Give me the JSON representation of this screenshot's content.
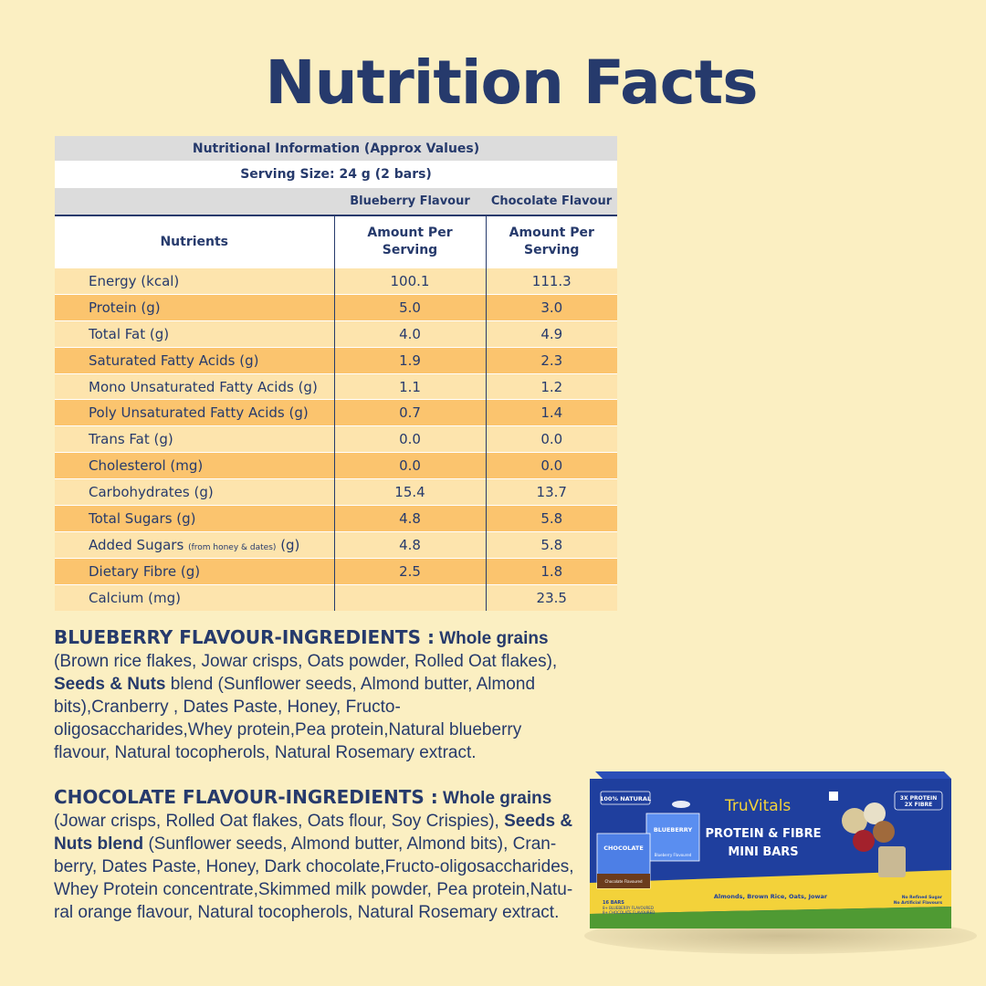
{
  "page_title": "Nutrition Facts",
  "table": {
    "header_title": "Nutritional Information (Approx Values)",
    "serving_size": "Serving Size: 24 g (2 bars)",
    "flavour_1": "Blueberry Flavour",
    "flavour_2": "Chocolate Flavour",
    "col_nutrients": "Nutrients",
    "col_amount_1_line1": "Amount Per",
    "col_amount_1_line2": "Serving",
    "col_amount_2_line1": "Amount Per",
    "col_amount_2_line2": "Serving",
    "rows": [
      {
        "name": "Energy (kcal)",
        "blueberry": "100.1",
        "chocolate": "111.3"
      },
      {
        "name": "Protein (g)",
        "blueberry": "5.0",
        "chocolate": "3.0"
      },
      {
        "name": "Total Fat (g)",
        "blueberry": "4.0",
        "chocolate": "4.9"
      },
      {
        "name": "Saturated Fatty Acids (g)",
        "blueberry": "1.9",
        "chocolate": "2.3"
      },
      {
        "name": "Mono Unsaturated Fatty Acids (g)",
        "blueberry": "1.1",
        "chocolate": "1.2"
      },
      {
        "name": "Poly Unsaturated Fatty Acids (g)",
        "blueberry": "0.7",
        "chocolate": "1.4"
      },
      {
        "name": "Trans Fat (g)",
        "blueberry": "0.0",
        "chocolate": "0.0"
      },
      {
        "name": "Cholesterol (mg)",
        "blueberry": "0.0",
        "chocolate": "0.0"
      },
      {
        "name": "Carbohydrates (g)",
        "blueberry": "15.4",
        "chocolate": "13.7"
      },
      {
        "name": "Total Sugars (g)",
        "blueberry": "4.8",
        "chocolate": "5.8"
      },
      {
        "name": "Added Sugars",
        "name_note": "(from honey & dates)",
        "name_unit": "(g)",
        "blueberry": "4.8",
        "chocolate": "5.8"
      },
      {
        "name": "Dietary Fibre (g)",
        "blueberry": "2.5",
        "chocolate": "1.8"
      },
      {
        "name": "Calcium (mg)",
        "blueberry": "",
        "chocolate": "23.5"
      }
    ]
  },
  "ingredients": {
    "blueberry": {
      "heading": "BLUEBERRY FLAVOUR-INGREDIENTS :",
      "bold_1": "Whole grains",
      "text_1": "(Brown rice flakes, Jowar crisps, Oats powder, Rolled Oat flakes),",
      "bold_2": "Seeds & Nuts",
      "text_2": "blend (Sunflower seeds, Almond butter, Almond bits),Cranberry , Dates Paste, Honey, Fructo-oligosaccharides,Whey protein,Pea protein,Natural blueberry flavour, Natural tocopherols, Natural Rosemary extract."
    },
    "chocolate": {
      "heading": "CHOCOLATE FLAVOUR-INGREDIENTS :",
      "bold_1": "Whole grains",
      "text_1": "(Jowar crisps, Rolled Oat flakes, Oats flour, Soy Crispies),",
      "bold_2": "Seeds & Nuts blend",
      "text_2": "(Sunflower seeds, Almond butter, Almond bits), Cran-berry, Dates Paste, Honey, Dark chocolate,Fructo-oligosaccharides, Whey Protein concentrate,Skimmed milk powder, Pea protein,Natu-ral orange flavour, Natural tocopherols, Natural Rosemary extract."
    }
  },
  "product_box": {
    "badge_natural": "100% NATURAL",
    "brand": "TruVitals",
    "badge_protein": "3X PROTEIN",
    "badge_fibre": "2X FIBRE",
    "title_line1": "PROTEIN & FIBRE",
    "title_line2": "MINI BARS",
    "mini_box_1": "CHOCOLATE",
    "mini_box_2": "BLUEBERRY",
    "mini_box_1_sub": "Chocolate Flavoured",
    "mini_box_2_sub": "Blueberry Flavoured",
    "ingredients_line": "Almonds, Brown Rice, Oats, Jowar",
    "count_line1": "16 BARS",
    "count_line2": "8+ BLUEBERRY FLAVOURED",
    "count_line3": "8+ CHOCOLATE FLAVOURED",
    "claim_1": "No Refined Sugar",
    "claim_2": "No Artificial Flavours",
    "colors": {
      "navy": "#1f3f9e",
      "yellow": "#f3d23a",
      "green": "#4f9a33"
    }
  }
}
